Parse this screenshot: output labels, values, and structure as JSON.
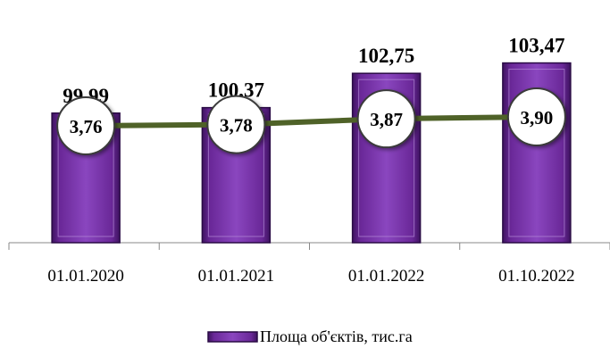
{
  "chart_data": {
    "type": "bar",
    "categories": [
      "01.01.2020",
      "01.01.2021",
      "01.01.2022",
      "01.10.2022"
    ],
    "series": [
      {
        "name": "Площа об'єктів, тис.га",
        "type": "bar",
        "values": [
          99.99,
          100.37,
          102.75,
          103.47
        ],
        "value_labels": [
          "99,99",
          "100,37",
          "102,75",
          "103,47"
        ],
        "color": "#7030A0"
      },
      {
        "type": "line",
        "values": [
          3.76,
          3.78,
          3.87,
          3.9
        ],
        "value_labels": [
          "3,76",
          "3,78",
          "3,87",
          "3,90"
        ],
        "color": "#4F6228"
      }
    ],
    "legend": {
      "position": "bottom-center",
      "entries": [
        "Площа об'єктів, тис.га"
      ]
    },
    "grid": false
  }
}
